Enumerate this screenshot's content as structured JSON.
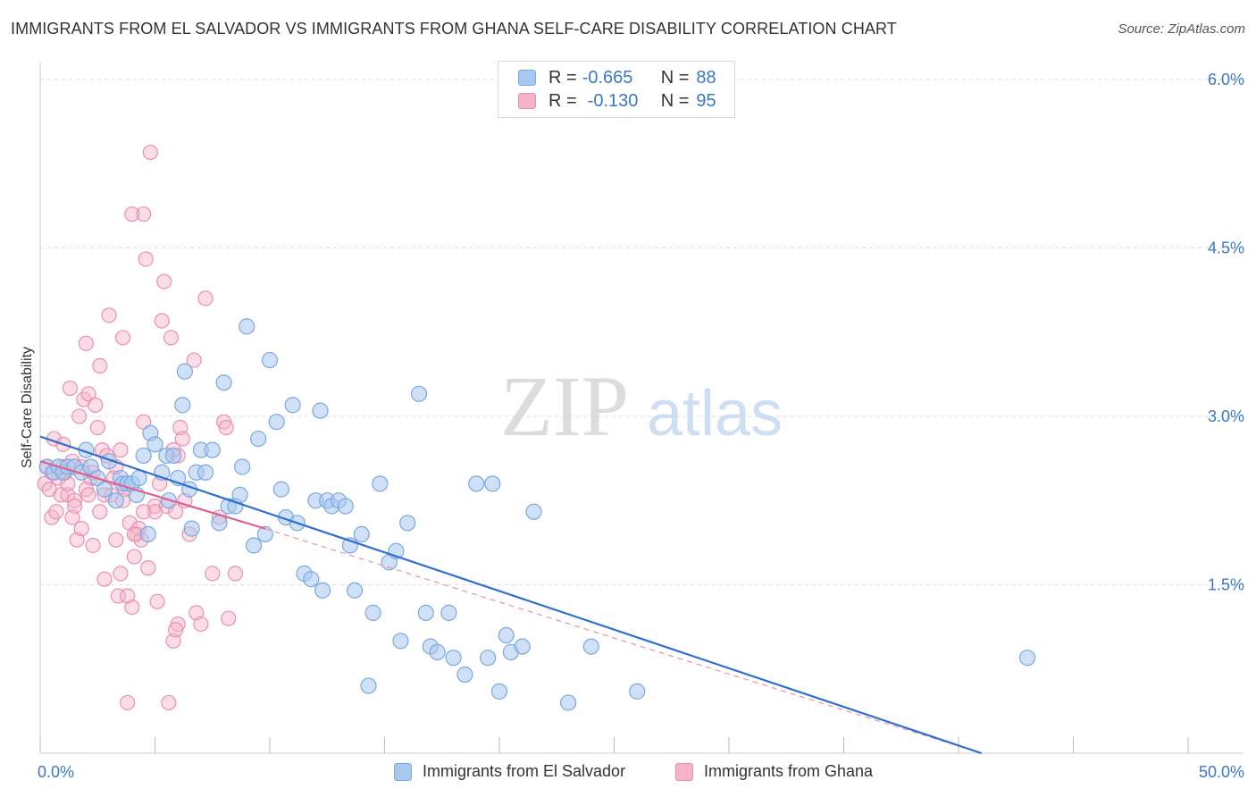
{
  "title": "IMMIGRANTS FROM EL SALVADOR VS IMMIGRANTS FROM GHANA SELF-CARE DISABILITY CORRELATION CHART",
  "source": "Source: ZipAtlas.com",
  "watermark": {
    "zip": "ZIP",
    "atlas": "atlas"
  },
  "legend": {
    "r_label": "R =",
    "n_label": "N =",
    "salvador": {
      "r": "-0.665",
      "n": "88"
    },
    "ghana": {
      "r": "-0.130",
      "n": "95"
    }
  },
  "colors": {
    "salvador_fill": "#a9c8f0",
    "salvador_stroke": "#7aa8e0",
    "salvador_line": "#2f6fcf",
    "ghana_fill": "#f5b3c8",
    "ghana_stroke": "#ec8fae",
    "ghana_line": "#e0608c",
    "axis_label": "#3a78c9",
    "grid": "#dddddd"
  },
  "chart_data": {
    "type": "scatter",
    "title": "IMMIGRANTS FROM EL SALVADOR VS IMMIGRANTS FROM GHANA SELF-CARE DISABILITY CORRELATION CHART",
    "xlabel": "",
    "ylabel": "Self-Care Disability",
    "xlim": [
      0,
      50
    ],
    "ylim": [
      0,
      6.15
    ],
    "x_tick_labels": [
      "0.0%",
      "50.0%"
    ],
    "y_ticks": [
      1.5,
      3.0,
      4.5,
      6.0
    ],
    "y_tick_labels": [
      "1.5%",
      "3.0%",
      "4.5%",
      "6.0%"
    ],
    "grid": "horizontal dashed",
    "legend_position": "top-center",
    "series": [
      {
        "name": "Immigrants from El Salvador",
        "points": [
          [
            0.3,
            2.55
          ],
          [
            0.6,
            2.5
          ],
          [
            0.8,
            2.55
          ],
          [
            1.0,
            2.5
          ],
          [
            1.2,
            2.55
          ],
          [
            1.5,
            2.55
          ],
          [
            1.8,
            2.5
          ],
          [
            2.0,
            2.7
          ],
          [
            2.2,
            2.55
          ],
          [
            2.5,
            2.45
          ],
          [
            2.8,
            2.35
          ],
          [
            3.0,
            2.6
          ],
          [
            3.3,
            2.25
          ],
          [
            3.5,
            2.45
          ],
          [
            3.6,
            2.4
          ],
          [
            3.8,
            2.4
          ],
          [
            4.0,
            2.4
          ],
          [
            4.2,
            2.3
          ],
          [
            4.3,
            2.45
          ],
          [
            4.5,
            2.65
          ],
          [
            4.7,
            1.95
          ],
          [
            4.8,
            2.85
          ],
          [
            5.0,
            2.75
          ],
          [
            5.3,
            2.5
          ],
          [
            5.5,
            2.65
          ],
          [
            5.6,
            2.25
          ],
          [
            5.8,
            2.65
          ],
          [
            6.0,
            2.45
          ],
          [
            6.2,
            3.1
          ],
          [
            6.3,
            3.4
          ],
          [
            6.5,
            2.35
          ],
          [
            6.6,
            2.0
          ],
          [
            6.8,
            2.5
          ],
          [
            7.0,
            2.7
          ],
          [
            7.2,
            2.5
          ],
          [
            7.5,
            2.7
          ],
          [
            7.8,
            2.05
          ],
          [
            8.0,
            3.3
          ],
          [
            8.2,
            2.2
          ],
          [
            8.5,
            2.2
          ],
          [
            8.7,
            2.3
          ],
          [
            8.8,
            2.55
          ],
          [
            9.0,
            3.8
          ],
          [
            9.3,
            1.85
          ],
          [
            9.5,
            2.8
          ],
          [
            9.8,
            1.95
          ],
          [
            10.0,
            3.5
          ],
          [
            10.3,
            2.95
          ],
          [
            10.5,
            2.35
          ],
          [
            10.7,
            2.1
          ],
          [
            11.0,
            3.1
          ],
          [
            11.2,
            2.05
          ],
          [
            11.5,
            1.6
          ],
          [
            11.8,
            1.55
          ],
          [
            12.0,
            2.25
          ],
          [
            12.2,
            3.05
          ],
          [
            12.3,
            1.45
          ],
          [
            12.5,
            2.25
          ],
          [
            12.7,
            2.2
          ],
          [
            13.0,
            2.25
          ],
          [
            13.3,
            2.2
          ],
          [
            13.5,
            1.85
          ],
          [
            13.7,
            1.45
          ],
          [
            14.0,
            1.95
          ],
          [
            14.3,
            0.6
          ],
          [
            14.5,
            1.25
          ],
          [
            14.8,
            2.4
          ],
          [
            15.2,
            1.7
          ],
          [
            15.5,
            1.8
          ],
          [
            15.7,
            1.0
          ],
          [
            16.0,
            2.05
          ],
          [
            16.5,
            3.2
          ],
          [
            16.8,
            1.25
          ],
          [
            17.0,
            0.95
          ],
          [
            17.3,
            0.9
          ],
          [
            17.8,
            1.25
          ],
          [
            18.0,
            0.85
          ],
          [
            18.5,
            0.7
          ],
          [
            19.0,
            2.4
          ],
          [
            19.5,
            0.85
          ],
          [
            19.7,
            2.4
          ],
          [
            20.0,
            0.55
          ],
          [
            20.3,
            1.05
          ],
          [
            20.5,
            0.9
          ],
          [
            21.0,
            0.95
          ],
          [
            21.5,
            2.15
          ],
          [
            23.0,
            0.45
          ],
          [
            24.0,
            0.95
          ],
          [
            26.0,
            0.55
          ],
          [
            43.0,
            0.85
          ]
        ],
        "trend": {
          "x": [
            0,
            41
          ],
          "y": [
            2.82,
            0.0
          ]
        }
      },
      {
        "name": "Immigrants from Ghana",
        "points": [
          [
            0.2,
            2.4
          ],
          [
            0.3,
            2.55
          ],
          [
            0.4,
            2.35
          ],
          [
            0.5,
            2.1
          ],
          [
            0.6,
            2.8
          ],
          [
            0.7,
            2.15
          ],
          [
            0.8,
            2.45
          ],
          [
            0.9,
            2.3
          ],
          [
            1.0,
            2.75
          ],
          [
            1.1,
            2.5
          ],
          [
            1.2,
            2.3
          ],
          [
            1.3,
            3.25
          ],
          [
            1.4,
            2.6
          ],
          [
            1.5,
            2.25
          ],
          [
            1.6,
            1.9
          ],
          [
            1.7,
            3.0
          ],
          [
            1.8,
            2.0
          ],
          [
            1.9,
            3.15
          ],
          [
            2.0,
            3.65
          ],
          [
            2.1,
            3.2
          ],
          [
            2.2,
            2.45
          ],
          [
            2.3,
            1.85
          ],
          [
            2.4,
            3.1
          ],
          [
            2.5,
            2.9
          ],
          [
            2.6,
            3.45
          ],
          [
            2.7,
            2.7
          ],
          [
            2.8,
            1.55
          ],
          [
            2.9,
            2.65
          ],
          [
            3.0,
            3.9
          ],
          [
            3.1,
            2.3
          ],
          [
            3.2,
            2.45
          ],
          [
            3.3,
            1.9
          ],
          [
            3.4,
            1.4
          ],
          [
            3.5,
            1.6
          ],
          [
            3.6,
            3.7
          ],
          [
            3.7,
            2.35
          ],
          [
            3.8,
            0.45
          ],
          [
            3.9,
            2.05
          ],
          [
            4.0,
            1.3
          ],
          [
            4.1,
            1.75
          ],
          [
            4.2,
            1.95
          ],
          [
            4.3,
            2.0
          ],
          [
            4.4,
            1.9
          ],
          [
            4.5,
            2.95
          ],
          [
            4.6,
            4.4
          ],
          [
            4.7,
            1.65
          ],
          [
            4.8,
            5.35
          ],
          [
            5.0,
            2.2
          ],
          [
            5.1,
            1.35
          ],
          [
            5.2,
            2.4
          ],
          [
            5.3,
            3.85
          ],
          [
            5.4,
            4.2
          ],
          [
            5.5,
            2.2
          ],
          [
            5.6,
            0.45
          ],
          [
            5.7,
            3.7
          ],
          [
            5.8,
            1.0
          ],
          [
            5.9,
            2.15
          ],
          [
            6.0,
            1.15
          ],
          [
            6.1,
            2.9
          ],
          [
            6.3,
            2.25
          ],
          [
            6.5,
            1.95
          ],
          [
            6.7,
            3.5
          ],
          [
            6.8,
            1.25
          ],
          [
            7.0,
            1.15
          ],
          [
            7.2,
            4.05
          ],
          [
            7.5,
            1.6
          ],
          [
            7.8,
            2.1
          ],
          [
            8.0,
            2.95
          ],
          [
            8.2,
            1.2
          ],
          [
            8.5,
            1.6
          ],
          [
            4.5,
            4.8
          ],
          [
            4.0,
            4.8
          ],
          [
            1.5,
            2.2
          ],
          [
            2.0,
            2.35
          ],
          [
            2.6,
            2.15
          ],
          [
            3.3,
            2.55
          ],
          [
            1.0,
            2.55
          ],
          [
            1.8,
            2.55
          ],
          [
            2.3,
            2.5
          ],
          [
            0.5,
            2.5
          ],
          [
            4.1,
            1.95
          ],
          [
            3.5,
            2.7
          ],
          [
            1.2,
            2.4
          ],
          [
            2.8,
            2.3
          ],
          [
            5.0,
            2.15
          ],
          [
            6.0,
            2.65
          ],
          [
            4.5,
            2.15
          ],
          [
            5.8,
            2.7
          ],
          [
            6.2,
            2.8
          ],
          [
            3.6,
            2.25
          ],
          [
            8.1,
            2.9
          ],
          [
            2.1,
            2.3
          ],
          [
            1.4,
            2.1
          ],
          [
            3.8,
            1.4
          ],
          [
            5.9,
            1.1
          ]
        ],
        "trend": {
          "x": [
            0,
            9.8
          ],
          "y": [
            2.6,
            2.0
          ]
        },
        "trend_extension": {
          "x": [
            9.8,
            41
          ],
          "y": [
            2.0,
            0.0
          ]
        }
      }
    ]
  }
}
